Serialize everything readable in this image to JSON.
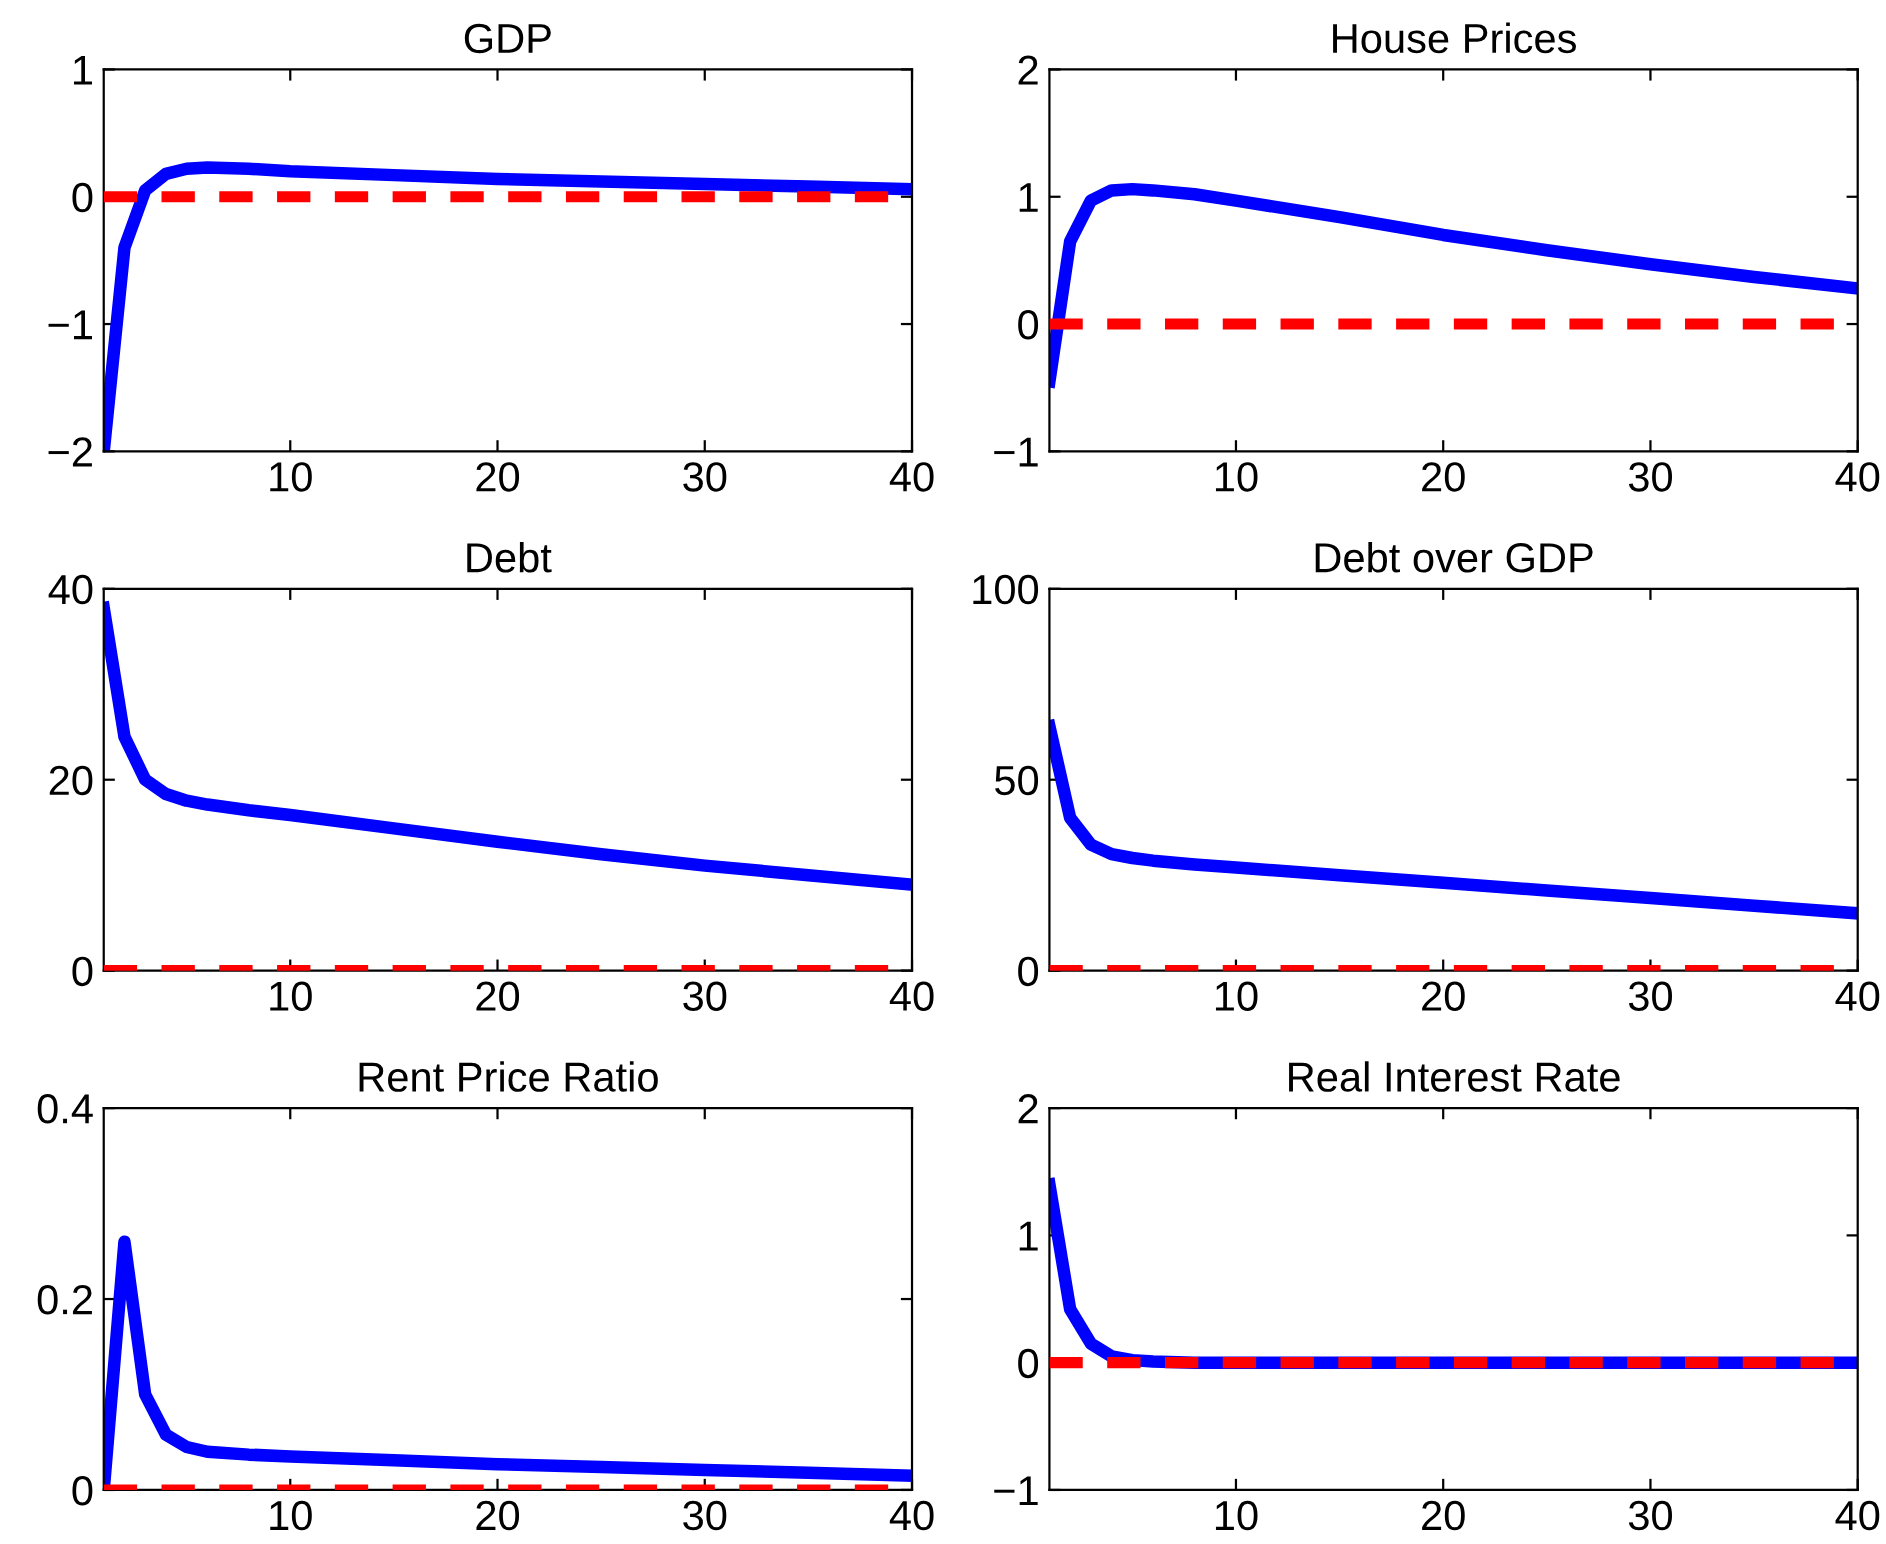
{
  "chart_data": [
    {
      "type": "line",
      "title": "GDP",
      "x": [
        1,
        2,
        3,
        4,
        5,
        6,
        8,
        10,
        15,
        20,
        25,
        30,
        35,
        40
      ],
      "series": [
        {
          "color": "#0000ff",
          "values": [
            -2,
            -0.4,
            0.05,
            0.18,
            0.22,
            0.23,
            0.22,
            0.2,
            0.17,
            0.14,
            0.12,
            0.1,
            0.08,
            0.06
          ]
        }
      ],
      "xlim": [
        1,
        40
      ],
      "xticks": [
        10,
        20,
        30,
        40
      ],
      "ylim": [
        -2,
        1
      ],
      "yticks": [
        -2,
        -1,
        0,
        1
      ],
      "ref_lines": [
        {
          "axis": "y",
          "value": 0,
          "color": "#ff0000",
          "line_style": "dashed"
        }
      ],
      "grid": false,
      "legend": false
    },
    {
      "type": "line",
      "title": "House Prices",
      "x": [
        1,
        2,
        3,
        4,
        5,
        6,
        8,
        10,
        15,
        20,
        25,
        30,
        35,
        40
      ],
      "series": [
        {
          "color": "#0000ff",
          "values": [
            -0.45,
            0.65,
            0.97,
            1.05,
            1.06,
            1.05,
            1.02,
            0.97,
            0.84,
            0.7,
            0.58,
            0.47,
            0.37,
            0.28
          ]
        }
      ],
      "xlim": [
        1,
        40
      ],
      "xticks": [
        10,
        20,
        30,
        40
      ],
      "ylim": [
        -1,
        2
      ],
      "yticks": [
        -1,
        0,
        1,
        2
      ],
      "ref_lines": [
        {
          "axis": "y",
          "value": 0,
          "color": "#ff0000",
          "line_style": "dashed"
        }
      ],
      "grid": false,
      "legend": false
    },
    {
      "type": "line",
      "title": "Debt",
      "x": [
        1,
        2,
        3,
        4,
        5,
        6,
        8,
        10,
        15,
        20,
        25,
        30,
        35,
        40
      ],
      "series": [
        {
          "color": "#0000ff",
          "values": [
            38,
            24.5,
            20,
            18.5,
            17.8,
            17.4,
            16.8,
            16.3,
            14.9,
            13.5,
            12.2,
            11,
            10,
            9
          ]
        }
      ],
      "xlim": [
        1,
        40
      ],
      "xticks": [
        10,
        20,
        30,
        40
      ],
      "ylim": [
        0,
        40
      ],
      "yticks": [
        0,
        20,
        40
      ],
      "ref_lines": [
        {
          "axis": "y",
          "value": 0,
          "color": "#ff0000",
          "line_style": "dashed"
        }
      ],
      "grid": false,
      "legend": false
    },
    {
      "type": "line",
      "title": "Debt over GDP",
      "x": [
        1,
        2,
        3,
        4,
        5,
        6,
        8,
        10,
        15,
        20,
        25,
        30,
        35,
        40
      ],
      "series": [
        {
          "color": "#0000ff",
          "values": [
            64,
            40,
            33,
            30.5,
            29.5,
            28.8,
            27.8,
            27,
            25,
            23,
            21,
            19,
            17,
            15
          ]
        }
      ],
      "xlim": [
        1,
        40
      ],
      "xticks": [
        10,
        20,
        30,
        40
      ],
      "ylim": [
        0,
        100
      ],
      "yticks": [
        0,
        50,
        100
      ],
      "ref_lines": [
        {
          "axis": "y",
          "value": 0,
          "color": "#ff0000",
          "line_style": "dashed"
        }
      ],
      "grid": false,
      "legend": false
    },
    {
      "type": "line",
      "title": "Rent Price Ratio",
      "x": [
        1,
        2,
        3,
        4,
        5,
        6,
        8,
        10,
        15,
        20,
        25,
        30,
        35,
        40
      ],
      "series": [
        {
          "color": "#0000ff",
          "values": [
            0,
            0.26,
            0.1,
            0.058,
            0.045,
            0.04,
            0.037,
            0.035,
            0.031,
            0.027,
            0.024,
            0.021,
            0.018,
            0.015
          ]
        }
      ],
      "xlim": [
        1,
        40
      ],
      "xticks": [
        10,
        20,
        30,
        40
      ],
      "ylim": [
        0,
        0.4
      ],
      "yticks": [
        0,
        0.2,
        0.4
      ],
      "ref_lines": [
        {
          "axis": "y",
          "value": 0,
          "color": "#ff0000",
          "line_style": "dashed"
        }
      ],
      "grid": false,
      "legend": false
    },
    {
      "type": "line",
      "title": "Real Interest Rate",
      "x": [
        1,
        2,
        3,
        4,
        5,
        6,
        8,
        10,
        15,
        20,
        25,
        30,
        35,
        40
      ],
      "series": [
        {
          "color": "#0000ff",
          "values": [
            1.4,
            0.42,
            0.15,
            0.05,
            0.02,
            0.01,
            0,
            0,
            0,
            0,
            0,
            0,
            0,
            0
          ]
        }
      ],
      "xlim": [
        1,
        40
      ],
      "xticks": [
        10,
        20,
        30,
        40
      ],
      "ylim": [
        -1,
        2
      ],
      "yticks": [
        -1,
        0,
        1,
        2
      ],
      "ref_lines": [
        {
          "axis": "y",
          "value": 0,
          "color": "#ff0000",
          "line_style": "dashed"
        }
      ],
      "grid": false,
      "legend": false
    }
  ]
}
